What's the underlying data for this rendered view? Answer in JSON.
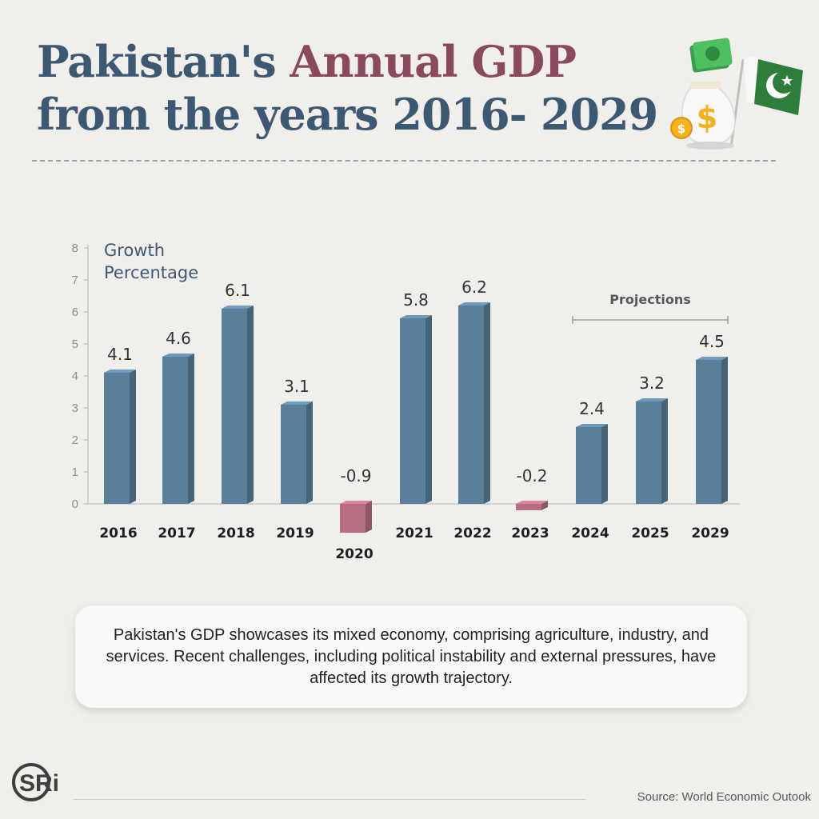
{
  "title": {
    "part1": "Pakistan's ",
    "accent": "Annual GDP",
    "line2": "from the years 2016- 2029"
  },
  "chart_data": {
    "type": "bar",
    "categories": [
      "2016",
      "2017",
      "2018",
      "2019",
      "2020",
      "2021",
      "2022",
      "2023",
      "2024",
      "2025",
      "2029"
    ],
    "values": [
      4.1,
      4.6,
      6.1,
      3.1,
      -0.9,
      5.8,
      6.2,
      -0.2,
      2.4,
      3.2,
      4.5
    ],
    "value_labels": [
      "4.1",
      "4.6",
      "6.1",
      "3.1",
      "-0.9",
      "5.8",
      "6.2",
      "-0.2",
      "2.4",
      "3.2",
      "4.5"
    ],
    "ylabel_line1": "Growth",
    "ylabel_line2": "Percentage",
    "ylim": [
      0,
      8
    ],
    "yticks": [
      "0",
      "1",
      "2",
      "3",
      "4",
      "5",
      "6",
      "7",
      "8"
    ],
    "annotation": "Projections",
    "projection_categories": [
      "2024",
      "2025",
      "2029"
    ],
    "grid": false,
    "colors": {
      "positive": "#5a7f99",
      "negative": "#b56e7f",
      "axis": "#c4c7c9"
    }
  },
  "description": "Pakistan's GDP showcases its mixed economy, comprising agriculture, industry, and services. Recent challenges, including political instability and external pressures, have affected its growth trajectory.",
  "logo_text": "SRi",
  "source": "Source: World Economic Outook",
  "icons": [
    "money-bag-icon",
    "pakistan-flag-icon"
  ]
}
